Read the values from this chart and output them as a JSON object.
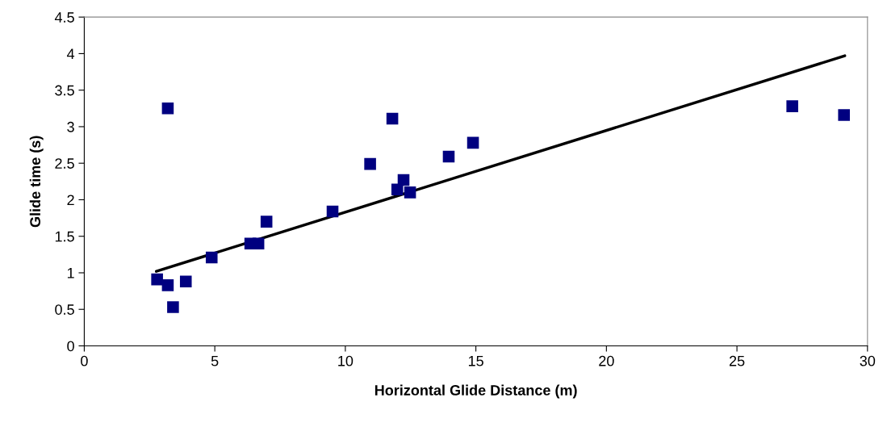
{
  "chart_data": {
    "type": "scatter",
    "xlabel": "Horizontal Glide Distance (m)",
    "ylabel": "Glide time (s)",
    "xlim": [
      0,
      30
    ],
    "xticks": [
      0,
      5,
      10,
      15,
      20,
      25,
      30
    ],
    "ylim": [
      0,
      4.5
    ],
    "yticks": [
      0,
      0.5,
      1,
      1.5,
      2,
      2.5,
      3,
      3.5,
      4,
      4.5
    ],
    "grid": false,
    "legend": false,
    "series": [
      {
        "marker": "square",
        "color": "#000080",
        "x": [
          3.2,
          11.8,
          14.89,
          13.96,
          10.95,
          12.23,
          11.99,
          12.48,
          9.51,
          6.98,
          6.36,
          6.67,
          4.88,
          2.79,
          3.2,
          3.89,
          3.4,
          27.12,
          29.1
        ],
        "values": [
          3.25,
          3.11,
          2.78,
          2.59,
          2.49,
          2.27,
          2.14,
          2.1,
          1.84,
          1.7,
          1.4,
          1.4,
          1.21,
          0.91,
          0.83,
          0.88,
          0.53,
          3.28,
          3.16
        ]
      },
      {
        "type": "line",
        "marker": "none",
        "color": "#000000",
        "x": [
          2.76,
          29.13
        ],
        "values": [
          1.02,
          3.97
        ]
      }
    ]
  }
}
